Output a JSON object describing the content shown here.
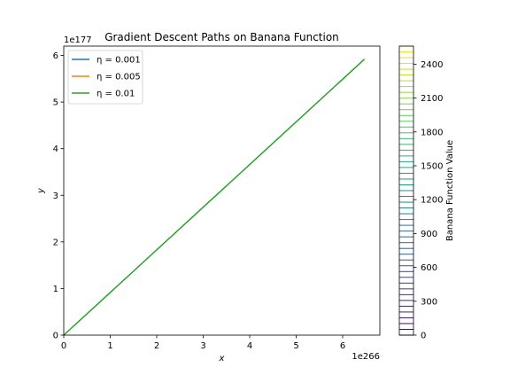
{
  "chart_data": {
    "type": "line",
    "title": "Gradient Descent Paths on Banana Function",
    "xlabel": "x",
    "ylabel": "y",
    "x_offset_label": "1e266",
    "y_offset_label": "1e177",
    "xlim": [
      0,
      6.8
    ],
    "ylim": [
      0,
      6.2
    ],
    "x_ticks": [
      0,
      1,
      2,
      3,
      4,
      5,
      6
    ],
    "y_ticks": [
      0,
      1,
      2,
      3,
      4,
      5,
      6
    ],
    "x_tick_labels": [
      "0",
      "1",
      "2",
      "3",
      "4",
      "5",
      "6"
    ],
    "y_tick_labels": [
      "0",
      "1",
      "2",
      "3",
      "4",
      "5",
      "6"
    ],
    "legend_position": "top-left",
    "series": [
      {
        "name": "η = 0.001",
        "color": "#1f77b4",
        "x": [
          0,
          0
        ],
        "y": [
          0,
          0
        ]
      },
      {
        "name": "η = 0.005",
        "color": "#ff7f0e",
        "x": [
          0,
          0
        ],
        "y": [
          0,
          0
        ]
      },
      {
        "name": "η = 0.01",
        "color": "#2ca02c",
        "x": [
          0,
          6.47
        ],
        "y": [
          0,
          5.92
        ]
      }
    ],
    "colorbar": {
      "label": "Banana Function Value",
      "colormap": "viridis",
      "range": [
        0,
        2560
      ],
      "tick_values": [
        0,
        300,
        600,
        900,
        1200,
        1500,
        1800,
        2100,
        2400
      ],
      "tick_labels": [
        "0",
        "300",
        "600",
        "900",
        "1200",
        "1500",
        "1800",
        "2100",
        "2400"
      ],
      "contour_levels": 50
    }
  }
}
